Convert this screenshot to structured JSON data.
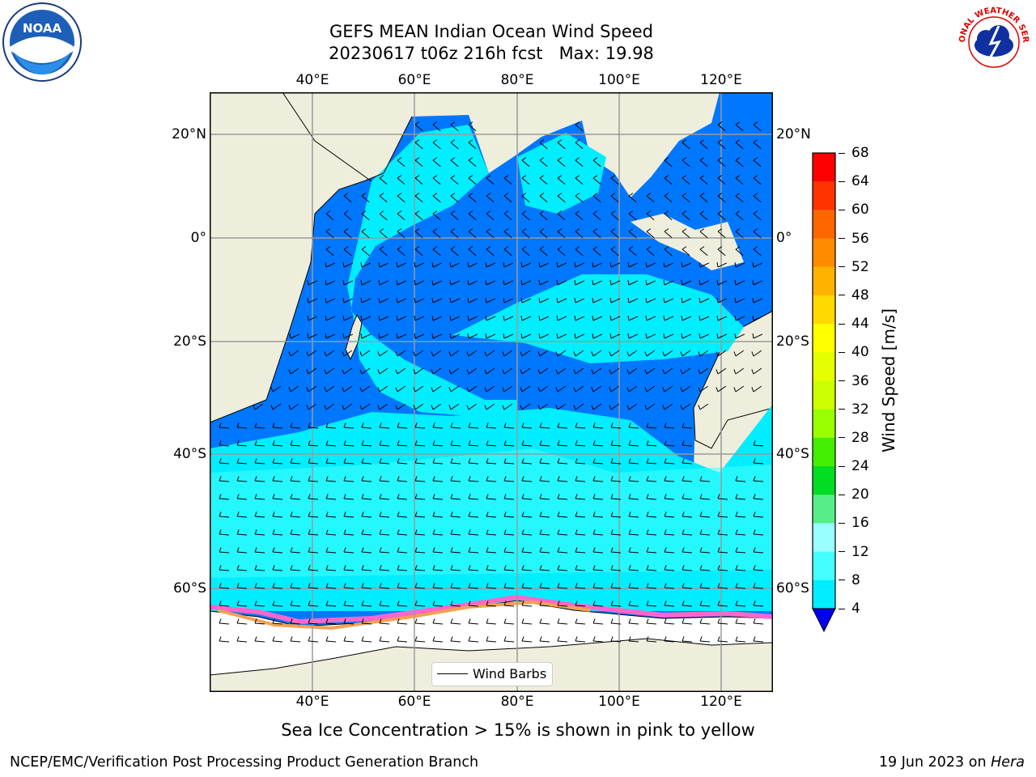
{
  "title": {
    "line1": "GEFS MEAN Indian Ocean Wind Speed",
    "line2": "20230617 t06z 216h fcst   Max: 19.98"
  },
  "axes": {
    "lon_labels": [
      "40°E",
      "60°E",
      "80°E",
      "100°E",
      "120°E"
    ],
    "lat_labels": [
      "20°N",
      "0°",
      "20°S",
      "40°S",
      "60°S"
    ]
  },
  "colorbar": {
    "label": "Wind Speed [m/s]",
    "ticks": [
      "68",
      "64",
      "60",
      "56",
      "52",
      "48",
      "44",
      "40",
      "36",
      "32",
      "28",
      "24",
      "20",
      "16",
      "12",
      "8",
      "4"
    ],
    "colors": [
      "#ff0000",
      "#ff3300",
      "#ff6600",
      "#ff8c00",
      "#ffb300",
      "#ffd900",
      "#ffff00",
      "#e5ff00",
      "#ccff00",
      "#99ff00",
      "#44ee00",
      "#00dd22",
      "#55ee88",
      "#99ffff",
      "#44ffff",
      "#00eeff",
      "#0077ff"
    ],
    "extend_color": "#0000ee"
  },
  "legend": {
    "label": "Wind Barbs"
  },
  "note": "Sea Ice Concentration > 15% is shown in pink to yellow",
  "footer": {
    "left": "NCEP/EMC/Verification Post Processing Product Generation Branch",
    "right_date": "19 Jun 2023 on",
    "right_host": "Hera"
  },
  "logos": {
    "left": "NOAA",
    "right": "NATIONAL WEATHER SERVICE"
  },
  "map": {
    "land_color": "#efeedd",
    "ocean_low": "#0077ff",
    "ocean_mid": "#00eeff",
    "ocean_high": "#44ffff",
    "ice_color": "#ffffff"
  }
}
